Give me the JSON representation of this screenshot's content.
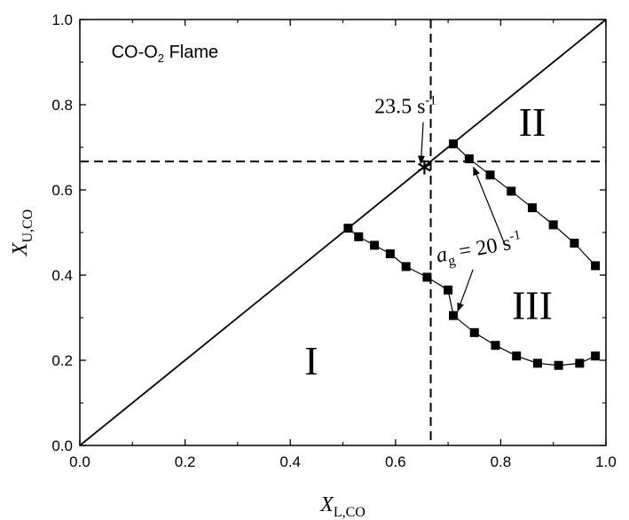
{
  "chart_data": {
    "type": "scatter",
    "x_axis": {
      "label": "X",
      "label_sub": "L,CO",
      "range": [
        0,
        1
      ],
      "ticks": [
        0.0,
        0.2,
        0.4,
        0.6,
        0.8,
        1.0
      ],
      "tick_labels": [
        "0.0",
        "0.2",
        "0.4",
        "0.6",
        "0.8",
        "1.0"
      ]
    },
    "y_axis": {
      "label": "X",
      "label_sub": "U,CO",
      "range": [
        0,
        1
      ],
      "ticks": [
        0.0,
        0.2,
        0.4,
        0.6,
        0.8,
        1.0
      ],
      "tick_labels": [
        "0.0",
        "0.2",
        "0.4",
        "0.6",
        "0.8",
        "1.0"
      ]
    },
    "grid": false,
    "panel_label": {
      "main": "CO-O",
      "sub": "2",
      "rest": " Flame"
    },
    "reference_lines": {
      "diagonal": {
        "from": [
          0,
          0
        ],
        "to": [
          1,
          1
        ]
      },
      "vertical_dashed_x": 0.667,
      "horizontal_dashed_y": 0.667
    },
    "series": [
      {
        "values": [
          {
            "x": 0.51,
            "y": 0.51
          },
          {
            "x": 0.53,
            "y": 0.49
          },
          {
            "x": 0.56,
            "y": 0.47
          },
          {
            "x": 0.59,
            "y": 0.45
          },
          {
            "x": 0.62,
            "y": 0.42
          },
          {
            "x": 0.66,
            "y": 0.395
          },
          {
            "x": 0.7,
            "y": 0.365
          },
          {
            "x": 0.71,
            "y": 0.305
          },
          {
            "x": 0.75,
            "y": 0.265
          },
          {
            "x": 0.79,
            "y": 0.235
          },
          {
            "x": 0.83,
            "y": 0.21
          },
          {
            "x": 0.87,
            "y": 0.193
          },
          {
            "x": 0.91,
            "y": 0.188
          },
          {
            "x": 0.95,
            "y": 0.193
          },
          {
            "x": 0.98,
            "y": 0.21
          }
        ]
      },
      {
        "values": [
          {
            "x": 0.71,
            "y": 0.708
          },
          {
            "x": 0.74,
            "y": 0.673
          },
          {
            "x": 0.78,
            "y": 0.635
          },
          {
            "x": 0.82,
            "y": 0.597
          },
          {
            "x": 0.86,
            "y": 0.558
          },
          {
            "x": 0.9,
            "y": 0.518
          },
          {
            "x": 0.94,
            "y": 0.475
          },
          {
            "x": 0.98,
            "y": 0.422
          }
        ]
      }
    ],
    "special_point": {
      "x": 0.655,
      "y": 0.653,
      "marker": "star"
    },
    "region_labels": [
      {
        "text": "I",
        "x": 0.44,
        "y": 0.2
      },
      {
        "text": "II",
        "x": 0.86,
        "y": 0.76
      },
      {
        "text": "III",
        "x": 0.86,
        "y": 0.33
      }
    ],
    "annotations": [
      {
        "text": "23.5 s",
        "sup": "-1",
        "text_at": [
          0.56,
          0.78
        ],
        "arrow_to": [
          0.655,
          0.653
        ]
      },
      {
        "text_a": "a",
        "sub": "g",
        "text_b": " = 20 s",
        "sup": "-1",
        "text_at": [
          0.68,
          0.43
        ],
        "arrows_to": [
          [
            0.71,
            0.305
          ],
          [
            0.745,
            0.67
          ]
        ]
      }
    ],
    "colors": {
      "line": "#000000",
      "marker": "#000000",
      "background": "#ffffff"
    }
  }
}
